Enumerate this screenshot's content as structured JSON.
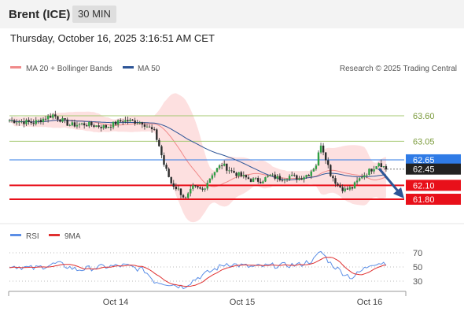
{
  "header": {
    "instrument": "Brent (ICE)",
    "timeframe": "30 MIN"
  },
  "timestamp": "Thursday, October 16, 2025 3:16:51 AM CET",
  "colors": {
    "bollinger": "#f08a8a",
    "ma50": "#2d5597",
    "rsi": "#5b8ee6",
    "rsi_ma": "#e03030",
    "support": "#e8101a",
    "resistance": "#a4c870",
    "last": "#2f7be6"
  },
  "chart_data": {
    "type": "candlestick",
    "legend": [
      "MA 20 + Bollinger Bands",
      "MA 50"
    ],
    "credit": "Research © 2025 Trading Central",
    "x_ticks": [
      "Oct 14",
      "Oct 15",
      "Oct 16"
    ],
    "ylim": [
      61.55,
      63.9
    ],
    "resistance": [
      63.6,
      63.05
    ],
    "support": [
      62.1,
      61.8
    ],
    "pivot": 62.65,
    "last_price": 62.45,
    "levels_labels": [
      "63.60",
      "63.05",
      "62.65",
      "62.45",
      "62.10",
      "61.80"
    ],
    "rsi": {
      "legend": [
        "RSI",
        "9MA"
      ],
      "levels": [
        70,
        50,
        30
      ],
      "level_labels": [
        "70",
        "50",
        "30"
      ]
    }
  }
}
